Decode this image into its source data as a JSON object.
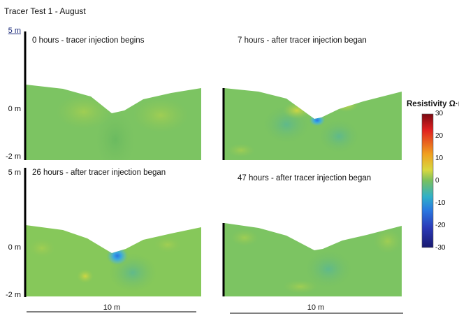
{
  "title": "Tracer Test 1 - August",
  "y_axis": {
    "top_label": "5 m",
    "zero_label": "0 m",
    "bottom_label": "-2 m"
  },
  "panels": [
    {
      "label": "0 hours - tracer injection begins"
    },
    {
      "label": "7 hours - after tracer injection began"
    },
    {
      "label": "26 hours - after tracer injection began"
    },
    {
      "label": "47 hours - after tracer injection began"
    }
  ],
  "scale_bars": [
    {
      "label": "10 m"
    },
    {
      "label": "10 m"
    }
  ],
  "colorbar": {
    "title": "Resistivity Ω·m",
    "min": -30,
    "max": 30,
    "ticks": [
      "30",
      "20",
      "10",
      "0",
      "-10",
      "-20",
      "-30"
    ]
  },
  "colors": {
    "background_green": "#78c060",
    "anomaly_blue": "#3aa8e0",
    "anomaly_yellow": "#d8d840"
  }
}
